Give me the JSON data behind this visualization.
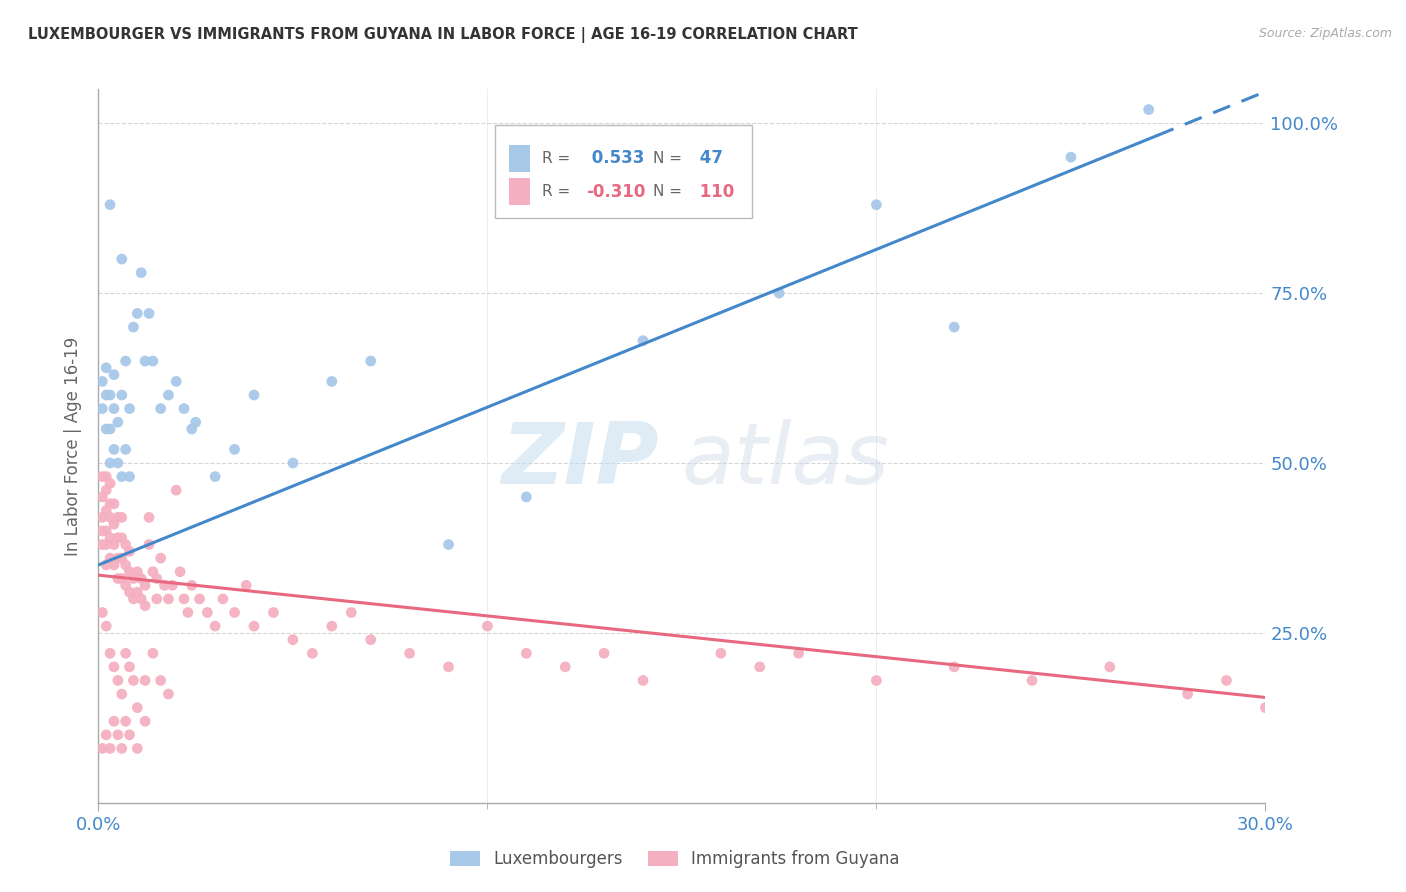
{
  "title": "LUXEMBOURGER VS IMMIGRANTS FROM GUYANA IN LABOR FORCE | AGE 16-19 CORRELATION CHART",
  "source": "Source: ZipAtlas.com",
  "ylabel": "In Labor Force | Age 16-19",
  "blue_R": 0.533,
  "blue_N": 47,
  "pink_R": -0.31,
  "pink_N": 110,
  "legend_blue_label": "Luxembourgers",
  "legend_pink_label": "Immigrants from Guyana",
  "blue_color": "#a8c8e8",
  "pink_color": "#f4b0c0",
  "trend_blue_color": "#4488cc",
  "trend_pink_color": "#e86880",
  "watermark_zip": "ZIP",
  "watermark_atlas": "atlas",
  "xmin": 0.0,
  "xmax": 0.3,
  "ymin": 0.0,
  "ymax": 1.05,
  "ytick_vals": [
    0.25,
    0.5,
    0.75,
    1.0
  ],
  "ytick_labels": [
    "25.0%",
    "50.0%",
    "75.0%",
    "100.0%"
  ],
  "xtick_vals": [
    0.0,
    0.3
  ],
  "xtick_labels": [
    "0.0%",
    "30.0%"
  ],
  "xtick_minor_vals": [
    0.1,
    0.2
  ],
  "grid_color": "#cccccc",
  "axis_color": "#aaaaaa",
  "tick_label_color": "#4488cc",
  "background_color": "#ffffff",
  "blue_x": [
    0.001,
    0.001,
    0.002,
    0.002,
    0.002,
    0.003,
    0.003,
    0.003,
    0.004,
    0.004,
    0.004,
    0.005,
    0.005,
    0.006,
    0.006,
    0.007,
    0.007,
    0.008,
    0.009,
    0.01,
    0.011,
    0.012,
    0.013,
    0.014,
    0.016,
    0.018,
    0.02,
    0.022,
    0.025,
    0.03,
    0.035,
    0.04,
    0.05,
    0.06,
    0.07,
    0.09,
    0.11,
    0.14,
    0.175,
    0.2,
    0.22,
    0.25,
    0.27,
    0.024,
    0.008,
    0.006,
    0.003
  ],
  "blue_y": [
    0.58,
    0.62,
    0.55,
    0.6,
    0.64,
    0.5,
    0.55,
    0.6,
    0.52,
    0.58,
    0.63,
    0.5,
    0.56,
    0.48,
    0.6,
    0.52,
    0.65,
    0.58,
    0.7,
    0.72,
    0.78,
    0.65,
    0.72,
    0.65,
    0.58,
    0.6,
    0.62,
    0.58,
    0.56,
    0.48,
    0.52,
    0.6,
    0.5,
    0.62,
    0.65,
    0.38,
    0.45,
    0.68,
    0.75,
    0.88,
    0.7,
    0.95,
    1.02,
    0.55,
    0.48,
    0.8,
    0.88
  ],
  "pink_x": [
    0.001,
    0.001,
    0.001,
    0.001,
    0.001,
    0.002,
    0.002,
    0.002,
    0.002,
    0.002,
    0.002,
    0.003,
    0.003,
    0.003,
    0.003,
    0.003,
    0.004,
    0.004,
    0.004,
    0.004,
    0.005,
    0.005,
    0.005,
    0.005,
    0.006,
    0.006,
    0.006,
    0.006,
    0.007,
    0.007,
    0.007,
    0.008,
    0.008,
    0.008,
    0.009,
    0.009,
    0.01,
    0.01,
    0.011,
    0.011,
    0.012,
    0.012,
    0.013,
    0.013,
    0.014,
    0.015,
    0.015,
    0.016,
    0.017,
    0.018,
    0.019,
    0.02,
    0.021,
    0.022,
    0.023,
    0.024,
    0.026,
    0.028,
    0.03,
    0.032,
    0.035,
    0.038,
    0.04,
    0.045,
    0.05,
    0.055,
    0.06,
    0.065,
    0.07,
    0.08,
    0.09,
    0.1,
    0.11,
    0.12,
    0.13,
    0.14,
    0.16,
    0.17,
    0.18,
    0.2,
    0.22,
    0.24,
    0.26,
    0.28,
    0.29,
    0.3,
    0.001,
    0.002,
    0.003,
    0.004,
    0.005,
    0.006,
    0.007,
    0.008,
    0.009,
    0.01,
    0.012,
    0.014,
    0.016,
    0.018,
    0.001,
    0.002,
    0.003,
    0.004,
    0.005,
    0.006,
    0.007,
    0.008,
    0.01,
    0.012
  ],
  "pink_y": [
    0.38,
    0.4,
    0.42,
    0.45,
    0.48,
    0.35,
    0.38,
    0.4,
    0.43,
    0.46,
    0.48,
    0.36,
    0.39,
    0.42,
    0.44,
    0.47,
    0.35,
    0.38,
    0.41,
    0.44,
    0.33,
    0.36,
    0.39,
    0.42,
    0.33,
    0.36,
    0.39,
    0.42,
    0.32,
    0.35,
    0.38,
    0.31,
    0.34,
    0.37,
    0.3,
    0.33,
    0.31,
    0.34,
    0.3,
    0.33,
    0.29,
    0.32,
    0.38,
    0.42,
    0.34,
    0.3,
    0.33,
    0.36,
    0.32,
    0.3,
    0.32,
    0.46,
    0.34,
    0.3,
    0.28,
    0.32,
    0.3,
    0.28,
    0.26,
    0.3,
    0.28,
    0.32,
    0.26,
    0.28,
    0.24,
    0.22,
    0.26,
    0.28,
    0.24,
    0.22,
    0.2,
    0.26,
    0.22,
    0.2,
    0.22,
    0.18,
    0.22,
    0.2,
    0.22,
    0.18,
    0.2,
    0.18,
    0.2,
    0.16,
    0.18,
    0.14,
    0.28,
    0.26,
    0.22,
    0.2,
    0.18,
    0.16,
    0.22,
    0.2,
    0.18,
    0.14,
    0.18,
    0.22,
    0.18,
    0.16,
    0.08,
    0.1,
    0.08,
    0.12,
    0.1,
    0.08,
    0.12,
    0.1,
    0.08,
    0.12
  ]
}
